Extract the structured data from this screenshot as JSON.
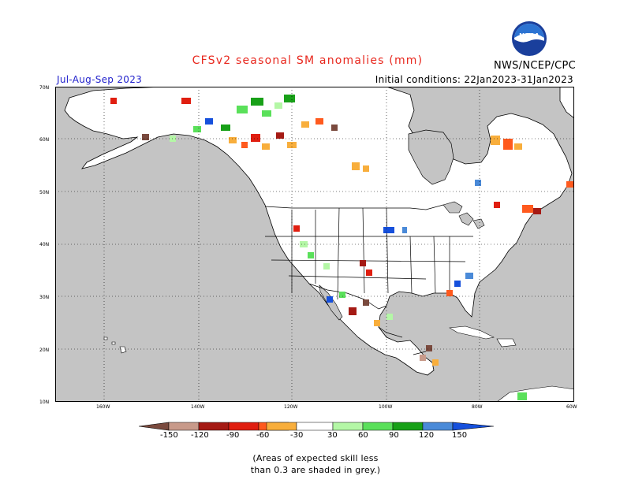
{
  "header": {
    "title": "CFSv2 seasonal SM anomalies (mm)",
    "season": "Jul-Aug-Sep 2023",
    "initial_conditions": "Initial conditions: 22Jan2023-31Jan2023",
    "org": "NWS/NCEP/CPC",
    "logo_text": "NOAA"
  },
  "axes": {
    "lat_labels": [
      "70N",
      "60N",
      "50N",
      "40N",
      "30N",
      "20N",
      "10N"
    ],
    "lon_labels": [
      "160W",
      "140W",
      "120W",
      "100W",
      "80W",
      "60W"
    ]
  },
  "legend": {
    "labels": [
      "-150",
      "-120",
      "-90",
      "-60",
      "-30",
      "30",
      "60",
      "90",
      "120",
      "150"
    ],
    "colors": [
      "#7a4a3e",
      "#c89a8a",
      "#a51a14",
      "#e01e10",
      "#ff5a1e",
      "#f8ae3c",
      "#ffffff",
      "#b4f7a6",
      "#5ae05a",
      "#18a018",
      "#4a8ad8",
      "#1650dc"
    ]
  },
  "note": {
    "line1": "(Areas of expected skill less",
    "line2": "than 0.3 are shaded in grey.)"
  },
  "colors": {
    "skill_grey": "#c4c4c4",
    "land": "#ffffff",
    "title_red": "#e8281e",
    "season_blue": "#2222cc"
  }
}
